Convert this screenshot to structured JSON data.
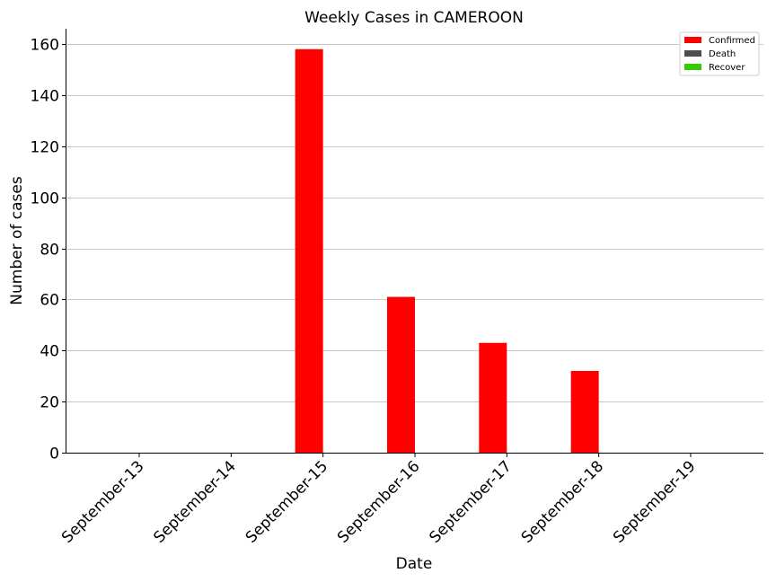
{
  "chart_data": {
    "type": "bar",
    "title": "Weekly Cases in CAMEROON",
    "xlabel": "Date",
    "ylabel": "Number of cases",
    "categories": [
      "September-13",
      "September-14",
      "September-15",
      "September-16",
      "September-17",
      "September-18",
      "September-19"
    ],
    "series": [
      {
        "name": "Confirmed",
        "color": "#ff0000",
        "values": [
          0,
          0,
          158,
          61,
          43,
          32,
          0
        ]
      },
      {
        "name": "Death",
        "color": "#4d4d4d",
        "values": [
          0,
          0,
          0,
          0,
          0,
          0,
          0
        ]
      },
      {
        "name": "Recover",
        "color": "#33cc00",
        "values": [
          0,
          0,
          0,
          0,
          0,
          0,
          0
        ]
      }
    ],
    "ylim": [
      0,
      166
    ],
    "yticks": [
      0,
      20,
      40,
      60,
      80,
      100,
      120,
      140,
      160
    ],
    "grid": "horizontal",
    "legend_position": "top-right"
  }
}
